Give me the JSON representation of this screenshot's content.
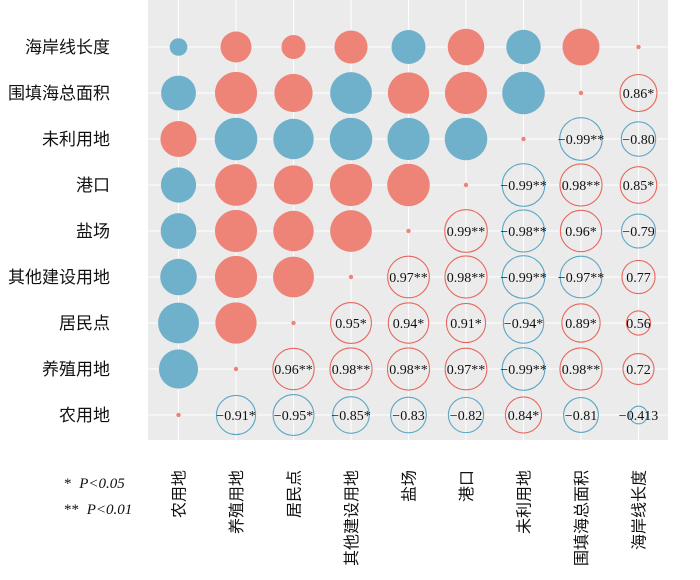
{
  "chart_data": {
    "type": "heatmap",
    "subtype": "correlation-circle-matrix",
    "variables": [
      "农用地",
      "养殖用地",
      "居民点",
      "其他建设用地",
      "盐场",
      "港口",
      "未利用地",
      "围填海总面积",
      "海岸线长度"
    ],
    "row_order": [
      "海岸线长度",
      "围填海总面积",
      "未利用地",
      "港口",
      "盐场",
      "其他建设用地",
      "居民点",
      "养殖用地",
      "农用地"
    ],
    "column_order": [
      "农用地",
      "养殖用地",
      "居民点",
      "其他建设用地",
      "盐场",
      "港口",
      "未利用地",
      "围填海总面积",
      "海岸线长度"
    ],
    "cells": [
      {
        "row": "海岸线长度",
        "col": "农用地",
        "value": -0.41
      },
      {
        "row": "海岸线长度",
        "col": "养殖用地",
        "value": 0.72
      },
      {
        "row": "海岸线长度",
        "col": "居民点",
        "value": 0.56
      },
      {
        "row": "海岸线长度",
        "col": "其他建设用地",
        "value": 0.77
      },
      {
        "row": "海岸线长度",
        "col": "盐场",
        "value": -0.79
      },
      {
        "row": "海岸线长度",
        "col": "港口",
        "value": 0.85
      },
      {
        "row": "海岸线长度",
        "col": "未利用地",
        "value": -0.8
      },
      {
        "row": "海岸线长度",
        "col": "围填海总面积",
        "value": 0.86
      },
      {
        "row": "海岸线长度",
        "col": "海岸线长度",
        "value": 0.1
      },
      {
        "row": "围填海总面积",
        "col": "农用地",
        "value": -0.81
      },
      {
        "row": "围填海总面积",
        "col": "养殖用地",
        "value": 0.98
      },
      {
        "row": "围填海总面积",
        "col": "居民点",
        "value": 0.89
      },
      {
        "row": "围填海总面积",
        "col": "其他建设用地",
        "value": -0.97
      },
      {
        "row": "围填海总面积",
        "col": "盐场",
        "value": 0.96
      },
      {
        "row": "围填海总面积",
        "col": "港口",
        "value": 0.98
      },
      {
        "row": "围填海总面积",
        "col": "未利用地",
        "value": -0.99
      },
      {
        "row": "围填海总面积",
        "col": "围填海总面积",
        "value": 0.1
      },
      {
        "row": "围填海总面积",
        "col": "海岸线长度",
        "value": 0.86,
        "label": "0.86*"
      },
      {
        "row": "未利用地",
        "col": "农用地",
        "value": 0.84
      },
      {
        "row": "未利用地",
        "col": "养殖用地",
        "value": -0.99
      },
      {
        "row": "未利用地",
        "col": "居民点",
        "value": -0.94
      },
      {
        "row": "未利用地",
        "col": "其他建设用地",
        "value": -0.99
      },
      {
        "row": "未利用地",
        "col": "盐场",
        "value": -0.98
      },
      {
        "row": "未利用地",
        "col": "港口",
        "value": -0.99
      },
      {
        "row": "未利用地",
        "col": "未利用地",
        "value": 0.1
      },
      {
        "row": "未利用地",
        "col": "围填海总面积",
        "value": -0.99,
        "label": "−0.99**"
      },
      {
        "row": "未利用地",
        "col": "海岸线长度",
        "value": -0.8,
        "label": "−0.80"
      },
      {
        "row": "港口",
        "col": "农用地",
        "value": -0.82
      },
      {
        "row": "港口",
        "col": "养殖用地",
        "value": 0.97
      },
      {
        "row": "港口",
        "col": "居民点",
        "value": 0.91
      },
      {
        "row": "港口",
        "col": "其他建设用地",
        "value": 0.98
      },
      {
        "row": "港口",
        "col": "盐场",
        "value": 0.99
      },
      {
        "row": "港口",
        "col": "港口",
        "value": 0.1
      },
      {
        "row": "港口",
        "col": "未利用地",
        "value": -0.99,
        "label": "−0.99**"
      },
      {
        "row": "港口",
        "col": "围填海总面积",
        "value": 0.98,
        "label": "0.98**"
      },
      {
        "row": "港口",
        "col": "海岸线长度",
        "value": 0.85,
        "label": "0.85*"
      },
      {
        "row": "盐场",
        "col": "农用地",
        "value": -0.83
      },
      {
        "row": "盐场",
        "col": "养殖用地",
        "value": 0.98
      },
      {
        "row": "盐场",
        "col": "居民点",
        "value": 0.94
      },
      {
        "row": "盐场",
        "col": "其他建设用地",
        "value": 0.97
      },
      {
        "row": "盐场",
        "col": "盐场",
        "value": 0.1
      },
      {
        "row": "盐场",
        "col": "港口",
        "value": 0.99,
        "label": "0.99**"
      },
      {
        "row": "盐场",
        "col": "未利用地",
        "value": -0.98,
        "label": "−0.98**"
      },
      {
        "row": "盐场",
        "col": "围填海总面积",
        "value": 0.96,
        "label": "0.96*"
      },
      {
        "row": "盐场",
        "col": "海岸线长度",
        "value": -0.79,
        "label": "−0.79"
      },
      {
        "row": "其他建设用地",
        "col": "农用地",
        "value": -0.85
      },
      {
        "row": "其他建设用地",
        "col": "养殖用地",
        "value": 0.98
      },
      {
        "row": "其他建设用地",
        "col": "居民点",
        "value": 0.95
      },
      {
        "row": "其他建设用地",
        "col": "其他建设用地",
        "value": 0.1
      },
      {
        "row": "其他建设用地",
        "col": "盐场",
        "value": 0.97,
        "label": "0.97**"
      },
      {
        "row": "其他建设用地",
        "col": "港口",
        "value": 0.98,
        "label": "0.98**"
      },
      {
        "row": "其他建设用地",
        "col": "未利用地",
        "value": -0.99,
        "label": "−0.99**"
      },
      {
        "row": "其他建设用地",
        "col": "围填海总面积",
        "value": -0.97,
        "label": "−0.97**"
      },
      {
        "row": "其他建设用地",
        "col": "海岸线长度",
        "value": 0.77,
        "label": "0.77"
      },
      {
        "row": "居民点",
        "col": "农用地",
        "value": -0.95
      },
      {
        "row": "居民点",
        "col": "养殖用地",
        "value": 0.96
      },
      {
        "row": "居民点",
        "col": "居民点",
        "value": 0.1
      },
      {
        "row": "居民点",
        "col": "其他建设用地",
        "value": 0.95,
        "label": "0.95*"
      },
      {
        "row": "居民点",
        "col": "盐场",
        "value": 0.94,
        "label": "0.94*"
      },
      {
        "row": "居民点",
        "col": "港口",
        "value": 0.91,
        "label": "0.91*"
      },
      {
        "row": "居民点",
        "col": "未利用地",
        "value": -0.94,
        "label": "−0.94*"
      },
      {
        "row": "居民点",
        "col": "围填海总面积",
        "value": 0.89,
        "label": "0.89*"
      },
      {
        "row": "居民点",
        "col": "海岸线长度",
        "value": 0.56,
        "label": "0.56"
      },
      {
        "row": "养殖用地",
        "col": "农用地",
        "value": -0.91
      },
      {
        "row": "养殖用地",
        "col": "养殖用地",
        "value": 0.1
      },
      {
        "row": "养殖用地",
        "col": "居民点",
        "value": 0.96,
        "label": "0.96**"
      },
      {
        "row": "养殖用地",
        "col": "其他建设用地",
        "value": 0.98,
        "label": "0.98**"
      },
      {
        "row": "养殖用地",
        "col": "盐场",
        "value": 0.98,
        "label": "0.98**"
      },
      {
        "row": "养殖用地",
        "col": "港口",
        "value": 0.97,
        "label": "0.97**"
      },
      {
        "row": "养殖用地",
        "col": "未利用地",
        "value": -0.99,
        "label": "−0.99**"
      },
      {
        "row": "养殖用地",
        "col": "围填海总面积",
        "value": 0.98,
        "label": "0.98**"
      },
      {
        "row": "养殖用地",
        "col": "海岸线长度",
        "value": 0.72,
        "label": "0.72"
      },
      {
        "row": "农用地",
        "col": "农用地",
        "value": 0.1
      },
      {
        "row": "农用地",
        "col": "养殖用地",
        "value": -0.91,
        "label": "−0.91*"
      },
      {
        "row": "农用地",
        "col": "居民点",
        "value": -0.95,
        "label": "−0.95*"
      },
      {
        "row": "农用地",
        "col": "其他建设用地",
        "value": -0.85,
        "label": "−0.85*"
      },
      {
        "row": "农用地",
        "col": "盐场",
        "value": -0.83,
        "label": "−0.83"
      },
      {
        "row": "农用地",
        "col": "港口",
        "value": -0.82,
        "label": "−0.82"
      },
      {
        "row": "农用地",
        "col": "未利用地",
        "value": 0.84,
        "label": "0.84*"
      },
      {
        "row": "农用地",
        "col": "围填海总面积",
        "value": -0.81,
        "label": "−0.81"
      },
      {
        "row": "农用地",
        "col": "海岸线长度",
        "value": -0.41,
        "label": "−0.413"
      }
    ],
    "colors": {
      "positive_fill": "#ee8377",
      "negative_fill": "#6fb0cb",
      "positive_outline": "#e8665c",
      "negative_outline": "#5aa6c5",
      "panel_background": "#ebebeb",
      "grid": "#ffffff"
    },
    "grid": true,
    "legend": {
      "placement": "bottom-left",
      "lines": [
        {
          "mark": "*",
          "text": "P<0.05"
        },
        {
          "mark": "**",
          "text": "P<0.01"
        }
      ]
    }
  }
}
